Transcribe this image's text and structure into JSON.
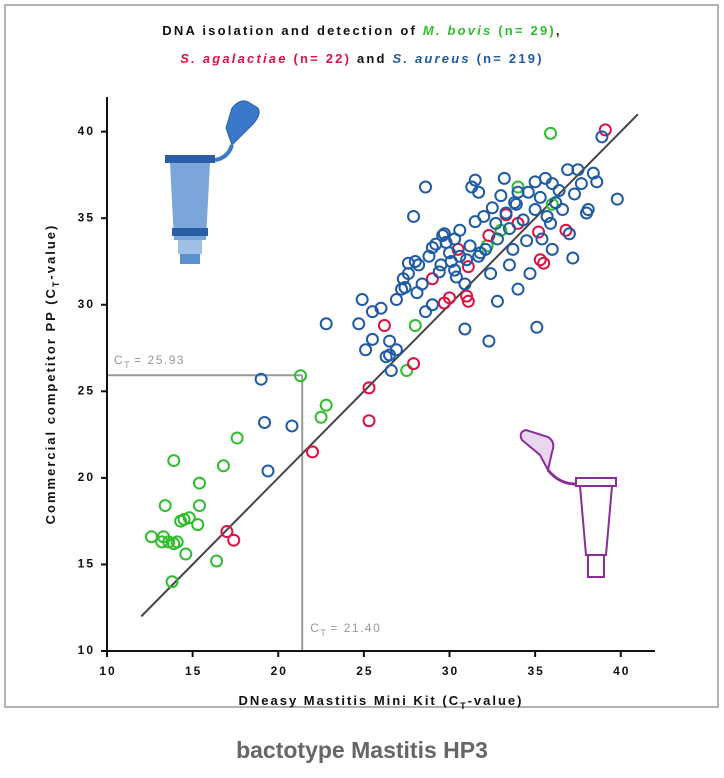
{
  "chart_data": {
    "type": "scatter",
    "title_lines": [
      [
        {
          "text": "DNA isolation and detection of ",
          "color": "#111111"
        },
        {
          "text": "M. bovis",
          "color": "#2ebd2e",
          "italic": true
        },
        {
          "text": " (n= 29)",
          "color": "#2ebd2e"
        },
        {
          "text": ",",
          "color": "#111111"
        }
      ],
      [
        {
          "text": "S. agalactiae",
          "color": "#dd1144",
          "italic": true
        },
        {
          "text": " (n= 22)",
          "color": "#dd1144"
        },
        {
          "text": " and ",
          "color": "#111111"
        },
        {
          "text": "S. aureus",
          "color": "#1f5aa6",
          "italic": true
        },
        {
          "text": " (n= 219)",
          "color": "#1f5aa6"
        }
      ]
    ],
    "xlabel": [
      "DNeasy Mastitis Mini Kit (C",
      "T",
      "-value)"
    ],
    "ylabel": [
      "Commercial competitor PP (C",
      "T",
      "-value)"
    ],
    "footer": "bactotype Mastitis HP3",
    "xlim": [
      10,
      42
    ],
    "ylim": [
      10,
      42
    ],
    "xticks": [
      10,
      15,
      20,
      25,
      30,
      35,
      40
    ],
    "yticks": [
      10,
      15,
      20,
      25,
      30,
      35,
      40
    ],
    "identity_line": {
      "x": [
        12,
        41
      ],
      "y": [
        12,
        41
      ]
    },
    "reference": {
      "x": {
        "value": 21.4,
        "label": "21.40"
      },
      "y": 25.93,
      "symbol": "C",
      "subscript": "T",
      "equals": "= "
    },
    "series": [
      {
        "name": "M. bovis",
        "color": "#2ebd2e",
        "x": [
          12.6,
          13.2,
          13.3,
          13.4,
          13.6,
          13.9,
          14.1,
          13.8,
          13.9,
          14.3,
          14.5,
          14.8,
          15.3,
          15.4,
          15.4,
          14.6,
          16.4,
          16.8,
          17.6,
          21.3,
          22.5,
          22.8,
          27.5,
          28,
          32.2,
          33,
          34,
          36,
          35.9
        ],
        "y": [
          16.6,
          16.3,
          16.6,
          18.4,
          16.3,
          16.2,
          16.3,
          14,
          21,
          17.5,
          17.6,
          17.7,
          17.3,
          18.4,
          19.7,
          15.6,
          15.2,
          20.7,
          22.3,
          25.9,
          23.5,
          24.2,
          26.2,
          28.8,
          33.4,
          34.3,
          36.8,
          35.8,
          39.9
        ]
      },
      {
        "name": "S. agalactiae",
        "color": "#dd1144",
        "x": [
          17,
          17.4,
          22,
          25.3,
          25.3,
          27.9,
          26.2,
          29.7,
          30,
          31,
          31.1,
          31.1,
          32.3,
          34,
          35.2,
          35.5,
          35.3,
          36.8,
          39.1,
          33.3,
          29,
          30.5
        ],
        "y": [
          16.9,
          16.4,
          21.5,
          25.2,
          23.3,
          26.6,
          28.8,
          30.1,
          30.4,
          30.5,
          30.2,
          32.2,
          34,
          34.7,
          34.2,
          32.4,
          32.6,
          34.3,
          40.1,
          35.2,
          31.5,
          33.2
        ]
      },
      {
        "name": "S. aureus",
        "color": "#1f5aa6",
        "x": [
          19,
          19.2,
          19.4,
          20.8,
          22.8,
          24.7,
          24.9,
          25.1,
          25.5,
          25.5,
          26,
          26.3,
          26.5,
          26.5,
          26.6,
          26.9,
          26.9,
          27.2,
          27.3,
          27.6,
          27.6,
          27.9,
          28,
          28.1,
          28.4,
          28.6,
          28.8,
          29,
          29,
          29.2,
          29.4,
          29.5,
          29.6,
          29.8,
          30,
          30.1,
          30.3,
          30.3,
          30.6,
          30.6,
          30.9,
          30.9,
          31,
          31.2,
          31.3,
          31.5,
          31.5,
          31.7,
          31.7,
          32,
          32.1,
          32.4,
          32.3,
          32.5,
          32.7,
          32.8,
          32.8,
          33,
          33.2,
          33.3,
          33.5,
          33.5,
          33.7,
          33.9,
          34,
          34,
          34.3,
          34.5,
          34.6,
          34.7,
          35,
          35,
          35.1,
          35.3,
          35.6,
          35.7,
          35.9,
          36,
          36,
          36.4,
          36.6,
          36.9,
          37,
          37.2,
          37.3,
          37.5,
          37.7,
          38,
          38.1,
          38.4,
          38.6,
          38.9,
          39.8,
          28.6,
          29.7,
          31.8,
          30.4,
          27.4,
          28.2,
          33.8,
          35.4,
          36.2
        ],
        "y": [
          25.7,
          23.2,
          20.4,
          23,
          28.9,
          28.9,
          30.3,
          27.4,
          29.6,
          28,
          29.8,
          27,
          27.9,
          27.1,
          26.2,
          27.4,
          30.3,
          30.9,
          31.5,
          31.8,
          32.4,
          35.1,
          32.5,
          30.7,
          31.2,
          29.6,
          32.8,
          33.3,
          30,
          33.5,
          31.9,
          32.3,
          34,
          33.6,
          33,
          32.5,
          32,
          33.8,
          32.8,
          34.3,
          31.2,
          28.6,
          32.6,
          33.4,
          36.8,
          37.2,
          34.8,
          32.8,
          36.5,
          35.1,
          33.2,
          31.8,
          27.9,
          35.6,
          34.7,
          33.8,
          30.2,
          36.3,
          37.3,
          35.3,
          34.4,
          32.3,
          33.2,
          35.8,
          30.9,
          36.5,
          34.9,
          33.7,
          36.5,
          31.8,
          37.1,
          35.5,
          28.7,
          36.2,
          37.3,
          35.1,
          34.7,
          33.2,
          37,
          36.6,
          35.5,
          37.8,
          34.1,
          32.7,
          36.4,
          37.8,
          37,
          35.3,
          35.5,
          37.6,
          37.1,
          39.7,
          36.1,
          36.8,
          34.1,
          33,
          31.6,
          31,
          32.3,
          35.9,
          33.8,
          35.9
        ]
      }
    ]
  }
}
